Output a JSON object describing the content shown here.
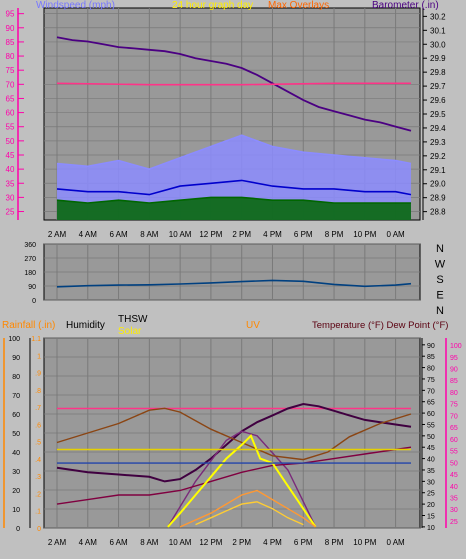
{
  "colors": {
    "background": "#c0c0c0",
    "plot_bg": "#999999",
    "grid": "#7a7a7a",
    "axis_pink": "#ff00aa",
    "axis_orange": "#ff8800",
    "axis_dark": "#000000"
  },
  "chart_data": [
    {
      "id": "wind-baro",
      "type": "line",
      "header": {
        "left": "Windspeed (mph)",
        "center": "24 hour graph day",
        "center_right": "Max Overlays",
        "right": "Barometer (.in)"
      },
      "x": [
        "2 AM",
        "4 AM",
        "6 AM",
        "8 AM",
        "10 AM",
        "12 PM",
        "2 PM",
        "4 PM",
        "6 PM",
        "8 PM",
        "10 PM",
        "0 AM"
      ],
      "left_axis": {
        "ticks": [
          25,
          30,
          35,
          40,
          45,
          50,
          55,
          60,
          65,
          70,
          75,
          80,
          85,
          90,
          95
        ],
        "range": [
          22,
          97
        ]
      },
      "right_axis": {
        "ticks": [
          28.8,
          28.9,
          29.0,
          29.1,
          29.2,
          29.3,
          29.4,
          29.5,
          29.6,
          29.7,
          29.8,
          29.9,
          30.0,
          30.1,
          30.2
        ],
        "range": [
          28.74,
          30.26
        ]
      },
      "series": [
        {
          "role": "barometer",
          "axis": "right",
          "color": "#4b0082",
          "points": [
            [
              0,
              30.05
            ],
            [
              0.5,
              30.03
            ],
            [
              1,
              30.02
            ],
            [
              1.5,
              30.0
            ],
            [
              2,
              29.98
            ],
            [
              2.5,
              29.97
            ],
            [
              3,
              29.96
            ],
            [
              3.5,
              29.95
            ],
            [
              4,
              29.93
            ],
            [
              4.5,
              29.9
            ],
            [
              5,
              29.88
            ],
            [
              5.5,
              29.86
            ],
            [
              6,
              29.83
            ],
            [
              6.5,
              29.78
            ],
            [
              7,
              29.72
            ],
            [
              7.5,
              29.66
            ],
            [
              8,
              29.6
            ],
            [
              8.5,
              29.55
            ],
            [
              9,
              29.52
            ],
            [
              9.5,
              29.49
            ],
            [
              10,
              29.46
            ],
            [
              10.5,
              29.44
            ],
            [
              11,
              29.41
            ],
            [
              11.5,
              29.38
            ]
          ]
        },
        {
          "role": "max-overlay",
          "axis": "right",
          "color": "#ff3388",
          "points": [
            [
              0,
              29.72
            ],
            [
              3,
              29.71
            ],
            [
              6,
              29.71
            ],
            [
              9,
              29.72
            ],
            [
              11.5,
              29.72
            ]
          ]
        },
        {
          "role": "high-wind",
          "axis": "left",
          "color": "#8c8cff",
          "fill": "#8c8cff",
          "points": [
            [
              0,
              42
            ],
            [
              1,
              41
            ],
            [
              2,
              43
            ],
            [
              3,
              40
            ],
            [
              4,
              44
            ],
            [
              5,
              48
            ],
            [
              6,
              52
            ],
            [
              7,
              48
            ],
            [
              8,
              46
            ],
            [
              9,
              45
            ],
            [
              10,
              44
            ],
            [
              11,
              43
            ],
            [
              11.5,
              42
            ]
          ]
        },
        {
          "role": "avg-wind",
          "axis": "left",
          "color": "#0000cc",
          "points": [
            [
              0,
              33
            ],
            [
              1,
              32
            ],
            [
              2,
              32
            ],
            [
              3,
              31
            ],
            [
              4,
              34
            ],
            [
              5,
              35
            ],
            [
              6,
              36
            ],
            [
              7,
              34
            ],
            [
              8,
              33
            ],
            [
              9,
              33
            ],
            [
              10,
              32
            ],
            [
              11,
              32
            ],
            [
              11.5,
              31
            ]
          ]
        },
        {
          "role": "low-wind",
          "axis": "left",
          "color": "#006600",
          "fill": "#006600",
          "points": [
            [
              0,
              29
            ],
            [
              1,
              28
            ],
            [
              2,
              29
            ],
            [
              3,
              28
            ],
            [
              4,
              29
            ],
            [
              5,
              30
            ],
            [
              6,
              30
            ],
            [
              7,
              29
            ],
            [
              8,
              29
            ],
            [
              9,
              28
            ],
            [
              10,
              28
            ],
            [
              11,
              28
            ],
            [
              11.5,
              28
            ]
          ]
        }
      ]
    },
    {
      "id": "direction",
      "type": "line",
      "x": [
        "2 AM",
        "4 AM",
        "6 AM",
        "8 AM",
        "10 AM",
        "12 PM",
        "2 PM",
        "4 PM",
        "6 PM",
        "8 PM",
        "10 PM",
        "0 AM"
      ],
      "left_axis": {
        "ticks": [
          0,
          90,
          180,
          270,
          360
        ],
        "range": [
          0,
          360
        ]
      },
      "right_labels": [
        "N",
        "W",
        "S",
        "E",
        "N"
      ],
      "series": [
        {
          "role": "wind-direction",
          "color": "#004080",
          "points": [
            [
              0,
              85
            ],
            [
              1,
              92
            ],
            [
              2,
              96
            ],
            [
              3,
              98
            ],
            [
              4,
              103
            ],
            [
              5,
              110
            ],
            [
              6,
              118
            ],
            [
              7,
              126
            ],
            [
              8,
              120
            ],
            [
              9,
              100
            ],
            [
              10,
              88
            ],
            [
              11,
              96
            ],
            [
              11.5,
              105
            ]
          ]
        }
      ]
    },
    {
      "id": "temp-rain",
      "type": "line",
      "header": {
        "rainfall": "Rainfall (.in)",
        "humidity": "Humidity",
        "thsw": "THSW",
        "solar": "Solar",
        "uv": "UV",
        "temp": "Temperature (°F) Dew Point (°F)"
      },
      "x": [
        "2 AM",
        "4 AM",
        "6 AM",
        "8 AM",
        "10 AM",
        "12 PM",
        "2 PM",
        "4 PM",
        "6 PM",
        "8 PM",
        "10 PM",
        "0 AM"
      ],
      "rain_axis": {
        "ticks": [
          0,
          0.1,
          0.2,
          0.3,
          0.4,
          0.5,
          0.6,
          0.7,
          0.8,
          0.9,
          1,
          1.1
        ],
        "range": [
          0,
          1.1
        ]
      },
      "humidity_axis": {
        "ticks": [
          0,
          10,
          20,
          30,
          40,
          50,
          60,
          70,
          80,
          90,
          100
        ],
        "range": [
          0,
          100
        ]
      },
      "temp_axis": {
        "ticks": [
          10,
          15,
          20,
          25,
          30,
          35,
          40,
          45,
          50,
          55,
          60,
          65,
          70,
          75,
          80,
          85,
          90
        ],
        "range": [
          9.5,
          93
        ]
      },
      "thsw_axis": {
        "ticks": [
          25,
          30,
          35,
          40,
          45,
          50,
          55,
          60,
          65,
          70,
          75,
          80,
          85,
          90,
          95,
          100
        ],
        "range": [
          22,
          103
        ]
      },
      "series": [
        {
          "role": "temp-max-overlay",
          "axis": "temp",
          "color": "#ff3388",
          "points": [
            [
              0,
              62
            ],
            [
              4,
              62
            ],
            [
              8,
              62
            ],
            [
              11.5,
              62
            ]
          ]
        },
        {
          "role": "temperature",
          "axis": "temp",
          "color": "#400040",
          "points": [
            [
              0,
              36
            ],
            [
              1,
              34
            ],
            [
              2,
              33
            ],
            [
              3,
              32
            ],
            [
              3.5,
              30
            ],
            [
              4,
              31
            ],
            [
              4.5,
              35
            ],
            [
              5,
              40
            ],
            [
              5.5,
              46
            ],
            [
              6,
              52
            ],
            [
              6.5,
              56
            ],
            [
              7,
              59
            ],
            [
              7.5,
              62
            ],
            [
              8,
              64
            ],
            [
              8.5,
              63
            ],
            [
              9,
              61
            ],
            [
              9.5,
              59
            ],
            [
              10,
              57
            ],
            [
              10.5,
              56
            ],
            [
              11,
              55
            ],
            [
              11.5,
              54
            ]
          ]
        },
        {
          "role": "thsw-envelope",
          "axis": "temp",
          "color": "#7a2a7a",
          "points": [
            [
              3.6,
              10
            ],
            [
              4.5,
              30
            ],
            [
              5.5,
              48
            ],
            [
              6,
              52
            ],
            [
              6.5,
              50
            ],
            [
              7.5,
              35
            ],
            [
              8.4,
              10
            ]
          ]
        },
        {
          "role": "humidity-line",
          "axis": "humidity",
          "color": "#8b4513",
          "points": [
            [
              0,
              45
            ],
            [
              1,
              50
            ],
            [
              2,
              55
            ],
            [
              3,
              62
            ],
            [
              3.5,
              63
            ],
            [
              4,
              61
            ],
            [
              5,
              52
            ],
            [
              6,
              45
            ],
            [
              7,
              38
            ],
            [
              8,
              36
            ],
            [
              8.8,
              40
            ],
            [
              9.5,
              48
            ],
            [
              10.5,
              55
            ],
            [
              11.5,
              60
            ]
          ]
        },
        {
          "role": "dewpoint",
          "axis": "temp",
          "color": "#800040",
          "points": [
            [
              0,
              20
            ],
            [
              1,
              22
            ],
            [
              2,
              24
            ],
            [
              3,
              24
            ],
            [
              4,
              26
            ],
            [
              5,
              30
            ],
            [
              6,
              34
            ],
            [
              7,
              37
            ],
            [
              8,
              38
            ],
            [
              9,
              40
            ],
            [
              10,
              42
            ],
            [
              11,
              44
            ],
            [
              11.5,
              45
            ]
          ]
        },
        {
          "role": "solar",
          "axis": "temp",
          "color": "#ffff00",
          "points": [
            [
              3.6,
              10
            ],
            [
              4,
              16
            ],
            [
              4.5,
              24
            ],
            [
              5,
              32
            ],
            [
              5.5,
              40
            ],
            [
              6,
              46
            ],
            [
              6.3,
              50
            ],
            [
              6.6,
              40
            ],
            [
              7,
              38
            ],
            [
              7.4,
              30
            ],
            [
              7.8,
              22
            ],
            [
              8.2,
              14
            ],
            [
              8.4,
              10
            ]
          ]
        },
        {
          "role": "uv",
          "axis": "temp",
          "color": "#ff9933",
          "points": [
            [
              4,
              10
            ],
            [
              4.5,
              13
            ],
            [
              5,
              16
            ],
            [
              5.5,
              20
            ],
            [
              6,
              24
            ],
            [
              6.5,
              26
            ],
            [
              7,
              22
            ],
            [
              7.5,
              18
            ],
            [
              8,
              14
            ],
            [
              8.4,
              10
            ]
          ]
        },
        {
          "role": "uv-hi",
          "axis": "temp",
          "color": "#ffcc33",
          "points": [
            [
              4.5,
              11
            ],
            [
              5,
              14
            ],
            [
              5.5,
              17
            ],
            [
              6,
              20
            ],
            [
              6.5,
              21
            ],
            [
              7,
              18
            ],
            [
              7.5,
              14
            ],
            [
              8,
              11
            ]
          ]
        },
        {
          "role": "yellow-flat",
          "axis": "temp",
          "color": "#e6d000",
          "points": [
            [
              0,
              44
            ],
            [
              4,
              44
            ],
            [
              8,
              44
            ],
            [
              11.5,
              44
            ]
          ]
        },
        {
          "role": "blue-flat",
          "axis": "temp",
          "color": "#2244aa",
          "points": [
            [
              0,
              38
            ],
            [
              11.5,
              38
            ]
          ]
        }
      ]
    }
  ]
}
